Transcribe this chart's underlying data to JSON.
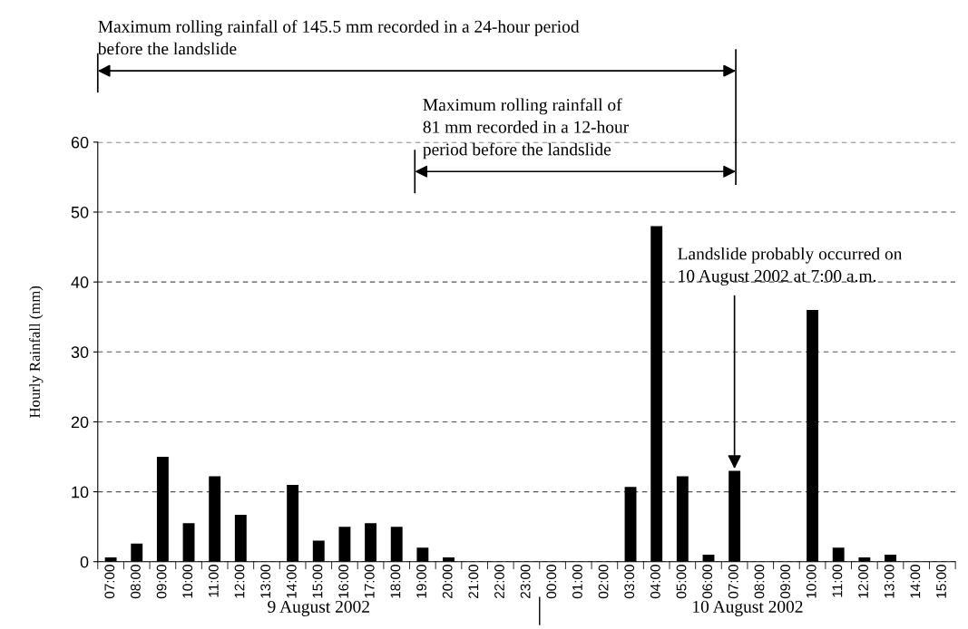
{
  "chart_data": {
    "type": "bar",
    "ylabel": "Hourly Rainfall (mm)",
    "categories": [
      "07:00",
      "08:00",
      "09:00",
      "10:00",
      "11:00",
      "12:00",
      "13:00",
      "14:00",
      "15:00",
      "16:00",
      "17:00",
      "18:00",
      "19:00",
      "20:00",
      "21:00",
      "22:00",
      "23:00",
      "00:00",
      "01:00",
      "02:00",
      "03:00",
      "04:00",
      "05:00",
      "06:00",
      "07:00",
      "08:00",
      "09:00",
      "10:00",
      "11:00",
      "12:00",
      "13:00",
      "14:00",
      "15:00"
    ],
    "values": [
      0.6,
      2.6,
      15,
      5.5,
      12.2,
      6.7,
      0,
      11,
      3,
      5,
      5.5,
      5,
      2,
      0.6,
      0,
      0,
      0,
      0,
      0,
      0,
      10.7,
      48,
      12.2,
      1,
      13,
      0,
      0,
      36,
      2,
      0.6,
      1,
      0,
      0
    ],
    "color": "#000000",
    "ylim": [
      0,
      60
    ],
    "yticks": [
      0,
      10,
      20,
      30,
      40,
      50,
      60
    ],
    "grid": "y",
    "annotations": [
      "Maximum rolling rainfall of 145.5 mm recorded in a 24-hour period before the landslide",
      "Maximum rolling rainfall of 81 mm recorded in a 12-hour period before the landslide",
      "Landslide probably occurred on 10 August 2002 at 7:00 a.m.",
      "9 August 2002",
      "10 August 2002"
    ]
  }
}
